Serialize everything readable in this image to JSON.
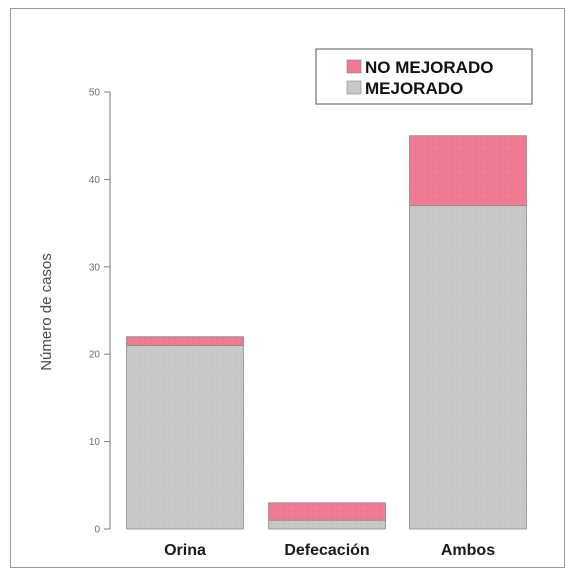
{
  "chart_data": {
    "type": "bar",
    "stacked": true,
    "categories": [
      "Orina",
      "Defecación",
      "Ambos"
    ],
    "series": [
      {
        "name": "MEJORADO",
        "values": [
          21,
          1,
          37
        ],
        "color": "#c8c8c8"
      },
      {
        "name": "NO MEJORADO",
        "values": [
          1,
          2,
          8
        ],
        "color": "#ee7a93"
      }
    ],
    "ylabel": "Número de casos",
    "ylim": [
      0,
      50
    ],
    "yticks": [
      "0",
      "10",
      "20",
      "30",
      "40",
      "50"
    ],
    "grid": false,
    "legend_position": "top-right"
  }
}
